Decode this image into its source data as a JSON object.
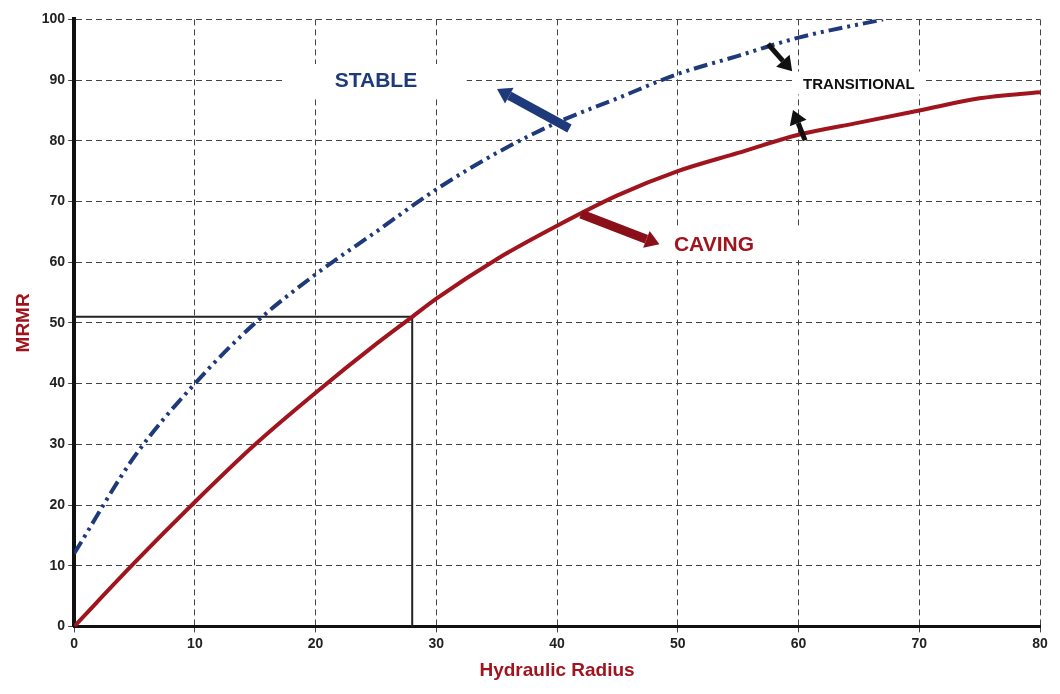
{
  "chart_data": {
    "type": "line",
    "xlabel": "Hydraulic Radius",
    "ylabel": "MRMR",
    "xlim": [
      0,
      80
    ],
    "xticks": [
      0,
      10,
      20,
      30,
      40,
      50,
      60,
      70,
      80
    ],
    "ylim": [
      0,
      100
    ],
    "yticks": [
      0,
      10,
      20,
      30,
      40,
      50,
      60,
      70,
      80,
      90,
      100
    ],
    "grid": true,
    "legend": false,
    "series": [
      {
        "color": "#1f3a7a",
        "line_style": "dashed",
        "x": [
          0,
          5,
          10,
          15,
          20,
          25,
          30,
          35,
          40,
          45,
          50,
          55,
          60,
          67
        ],
        "values": [
          12,
          28,
          40,
          50,
          58,
          65,
          72,
          78,
          83,
          87,
          91,
          94,
          97,
          100
        ]
      },
      {
        "color": "#a0141e",
        "line_style": "solid",
        "x": [
          0,
          5,
          10,
          15,
          20,
          25,
          28,
          30,
          35,
          40,
          45,
          50,
          55,
          60,
          65,
          70,
          75,
          80
        ],
        "values": [
          0,
          10.5,
          20.5,
          30,
          38.5,
          46.5,
          51,
          54,
          60.5,
          66,
          71,
          75,
          78,
          81,
          83,
          85,
          87,
          88
        ]
      }
    ],
    "ref_lines": [
      {
        "axis": "x",
        "value": 28,
        "color": "#222222"
      },
      {
        "axis": "y",
        "value": 51,
        "color": "#222222"
      }
    ],
    "annotations": [
      "STABLE",
      "TRANSITIONAL",
      "CAVING"
    ]
  }
}
